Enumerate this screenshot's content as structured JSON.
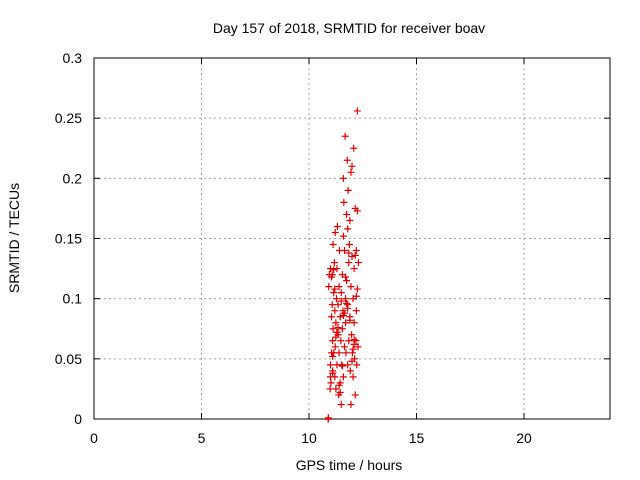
{
  "chart_data": {
    "type": "scatter",
    "title": "Day 157 of 2018, SRMTID for receiver boav",
    "xlabel": "GPS time / hours",
    "ylabel": "SRMTID / TECUs",
    "xlim": [
      0,
      24
    ],
    "ylim": [
      0,
      0.3
    ],
    "xticks": [
      0,
      5,
      10,
      15,
      20
    ],
    "xtick_labels": [
      "0",
      "5",
      "10",
      "15",
      "20"
    ],
    "yticks": [
      0,
      0.05,
      0.1,
      0.15,
      0.2,
      0.25,
      0.3
    ],
    "ytick_labels": [
      "0",
      "0.05",
      "0.1",
      "0.15",
      "0.2",
      "0.25",
      "0.3"
    ],
    "grid": true,
    "marker": "+",
    "color": "#e00000",
    "series": [
      {
        "name": "SRMTID",
        "x": [
          10.9,
          10.9,
          10.9,
          10.9,
          10.92,
          10.95,
          10.98,
          11.0,
          11.0,
          11.0,
          11.02,
          11.05,
          11.05,
          11.08,
          11.08,
          11.1,
          11.1,
          11.12,
          11.12,
          11.15,
          11.15,
          11.18,
          11.2,
          11.2,
          11.22,
          11.22,
          11.25,
          11.25,
          11.28,
          11.3,
          11.3,
          11.32,
          11.35,
          11.35,
          11.38,
          11.4,
          11.4,
          11.42,
          11.45,
          11.45,
          11.48,
          11.5,
          11.5,
          11.52,
          11.55,
          11.55,
          11.58,
          11.6,
          11.6,
          11.62,
          11.65,
          11.65,
          11.68,
          11.7,
          11.7,
          11.72,
          11.75,
          11.75,
          11.78,
          11.8,
          11.8,
          11.82,
          11.85,
          11.85,
          11.88,
          11.9,
          11.9,
          11.92,
          11.95,
          11.95,
          11.98,
          12.0,
          12.0,
          12.02,
          12.05,
          12.05,
          12.08,
          12.1,
          12.1,
          12.12,
          12.15,
          12.15,
          12.18,
          12.2,
          12.2,
          12.22,
          12.25,
          12.25,
          12.28,
          12.3,
          11.1,
          11.3,
          11.5,
          11.7,
          11.9,
          12.1,
          11.2,
          11.4,
          11.6,
          11.8,
          12.0,
          12.2,
          11.05,
          11.25,
          11.45,
          11.65,
          11.85,
          12.05,
          11.15,
          11.35,
          11.55,
          11.75,
          11.95,
          12.15,
          11.1,
          11.6,
          12.1,
          11.3,
          11.8,
          12.25
        ],
        "y": [
          0.0,
          0.0,
          0.0,
          0.001,
          0.11,
          0.12,
          0.025,
          0.045,
          0.035,
          0.125,
          0.03,
          0.055,
          0.085,
          0.095,
          0.12,
          0.065,
          0.04,
          0.145,
          0.075,
          0.055,
          0.105,
          0.13,
          0.035,
          0.09,
          0.155,
          0.06,
          0.025,
          0.08,
          0.1,
          0.125,
          0.045,
          0.16,
          0.07,
          0.095,
          0.02,
          0.11,
          0.055,
          0.14,
          0.085,
          0.03,
          0.065,
          0.105,
          0.012,
          0.045,
          0.12,
          0.075,
          0.09,
          0.2,
          0.035,
          0.18,
          0.06,
          0.14,
          0.235,
          0.1,
          0.08,
          0.055,
          0.17,
          0.115,
          0.215,
          0.045,
          0.095,
          0.19,
          0.065,
          0.13,
          0.145,
          0.085,
          0.165,
          0.04,
          0.11,
          0.205,
          0.07,
          0.21,
          0.135,
          0.055,
          0.1,
          0.035,
          0.225,
          0.08,
          0.125,
          0.05,
          0.175,
          0.02,
          0.065,
          0.09,
          0.14,
          0.045,
          0.173,
          0.256,
          0.06,
          0.13,
          0.038,
          0.072,
          0.098,
          0.118,
          0.082,
          0.062,
          0.108,
          0.028,
          0.152,
          0.092,
          0.048,
          0.102,
          0.118,
          0.068,
          0.022,
          0.088,
          0.138,
          0.058,
          0.124,
          0.076,
          0.044,
          0.096,
          0.012,
          0.136,
          0.052,
          0.086,
          0.066,
          0.072,
          0.158,
          0.108
        ]
      }
    ]
  }
}
